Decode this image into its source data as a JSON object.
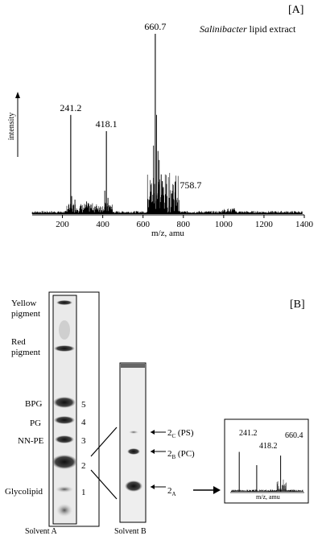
{
  "panel_a": {
    "label": "[A]",
    "title_italic": "Salinibacter",
    "title_rest": " lipid extract",
    "ylabel": "intensity",
    "xlabel": "m/z, amu",
    "peak_labels": [
      "241.2",
      "418.1",
      "660.7",
      "758.7"
    ]
  },
  "panel_b": {
    "label": "[B]",
    "solvent_a": "Solvent A",
    "solvent_b": "Solvent B",
    "left_labels": [
      "Yellow pigment",
      "Red pigment",
      "BPG",
      "PG",
      "NN-PE",
      "",
      "Glycolipid"
    ],
    "lane_numbers": [
      "5",
      "4",
      "3",
      "2",
      "1"
    ],
    "band_labels": {
      "2c": "2",
      "2c_sub": "C",
      "2c_suffix": " (PS)",
      "2b": "2",
      "2b_sub": "B",
      "2b_suffix": " (PC)",
      "2a": "2",
      "2a_sub": "A"
    },
    "inset": {
      "xlabel": "m/z, amu",
      "peak_labels": [
        "241.2",
        "418.2",
        "660.4"
      ]
    }
  },
  "chart_data": [
    {
      "type": "line",
      "title": "Salinibacter lipid extract",
      "xlabel": "m/z, amu",
      "ylabel": "intensity",
      "xlim": [
        50,
        1400
      ],
      "xticks": [
        200,
        400,
        600,
        800,
        1000,
        1200,
        1400
      ],
      "grid": false,
      "peaks": [
        {
          "x": 241.2,
          "y": 0.55,
          "label": "241.2"
        },
        {
          "x": 418.1,
          "y": 0.46,
          "label": "418.1"
        },
        {
          "x": 660.7,
          "y": 1.0,
          "label": "660.7"
        },
        {
          "x": 758.7,
          "y": 0.12,
          "label": "758.7"
        }
      ]
    },
    {
      "type": "line",
      "xlabel": "m/z, amu",
      "peaks": [
        {
          "x": 241.2,
          "y": 0.75,
          "label": "241.2"
        },
        {
          "x": 418.2,
          "y": 0.5,
          "label": "418.2"
        },
        {
          "x": 660.4,
          "y": 0.68,
          "label": "660.4"
        }
      ]
    }
  ]
}
